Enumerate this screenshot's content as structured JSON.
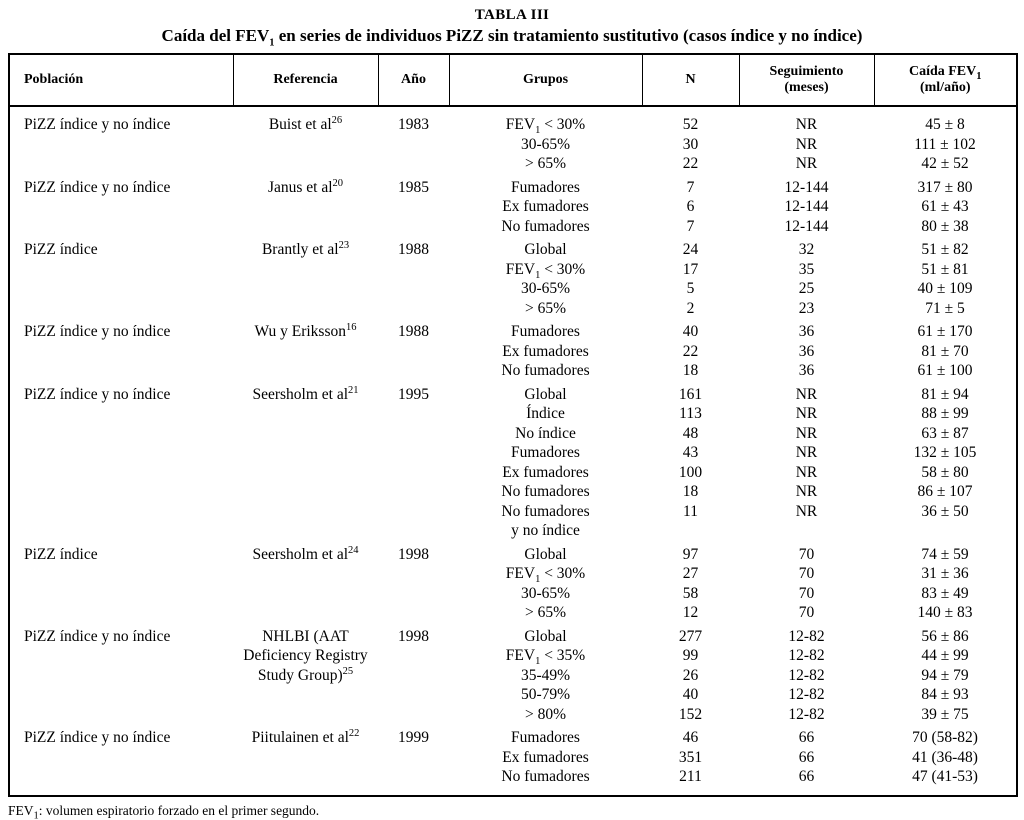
{
  "title": "TABLA III",
  "subtitle": "Caída del FEV_1 en series de individuos PiZZ sin tratamiento sustitutivo (casos índice y no índice)",
  "footnote": "FEV_1: volumen espiratorio forzado en el primer segundo.",
  "table": {
    "headers": [
      "Población",
      "Referencia",
      "Año",
      "Grupos",
      "N",
      "Seguimiento\n(meses)",
      "Caída FEV_1\n(ml/año)"
    ],
    "rows": [
      {
        "poblacion": [
          "PiZZ índice y no índice"
        ],
        "referencia": [
          "Buist et al^26"
        ],
        "ano": "1983",
        "grupos": [
          "FEV_1 < 30%",
          "30-65%",
          "> 65%"
        ],
        "n": [
          "52",
          "30",
          "22"
        ],
        "seguimiento": [
          "NR",
          "NR",
          "NR"
        ],
        "caida": [
          "45 ± 8",
          "111 ± 102",
          "42 ± 52"
        ]
      },
      {
        "poblacion": [
          "PiZZ índice y no índice"
        ],
        "referencia": [
          "Janus et al^20"
        ],
        "ano": "1985",
        "grupos": [
          "Fumadores",
          "Ex fumadores",
          "No fumadores"
        ],
        "n": [
          "7",
          "6",
          "7"
        ],
        "seguimiento": [
          "12-144",
          "12-144",
          "12-144"
        ],
        "caida": [
          "317 ± 80",
          "61 ± 43",
          "80 ± 38"
        ]
      },
      {
        "poblacion": [
          "PiZZ índice"
        ],
        "referencia": [
          "Brantly et al^23"
        ],
        "ano": "1988",
        "grupos": [
          "Global",
          "FEV_1 < 30%",
          "30-65%",
          "> 65%"
        ],
        "n": [
          "24",
          "17",
          "5",
          "2"
        ],
        "seguimiento": [
          "32",
          "35",
          "25",
          "23"
        ],
        "caida": [
          "51 ± 82",
          "51 ± 81",
          "40 ± 109",
          "71 ± 5"
        ]
      },
      {
        "poblacion": [
          "PiZZ índice y no índice"
        ],
        "referencia": [
          "Wu y Eriksson^16"
        ],
        "ano": "1988",
        "grupos": [
          "Fumadores",
          "Ex fumadores",
          "No fumadores"
        ],
        "n": [
          "40",
          "22",
          "18"
        ],
        "seguimiento": [
          "36",
          "36",
          "36"
        ],
        "caida": [
          "61 ± 170",
          "81 ± 70",
          "61 ± 100"
        ]
      },
      {
        "poblacion": [
          "PiZZ índice y no índice"
        ],
        "referencia": [
          "Seersholm et al^21"
        ],
        "ano": "1995",
        "grupos": [
          "Global",
          "Índice",
          "No índice",
          "Fumadores",
          "Ex fumadores",
          "No fumadores",
          "No fumadores",
          "y no índice"
        ],
        "n": [
          "161",
          "113",
          "48",
          "43",
          "100",
          "18",
          "11",
          ""
        ],
        "seguimiento": [
          "NR",
          "NR",
          "NR",
          "NR",
          "NR",
          "NR",
          "NR",
          ""
        ],
        "caida": [
          "81 ± 94",
          "88 ± 99",
          "63 ± 87",
          "132 ± 105",
          "58 ± 80",
          "86 ± 107",
          "36 ± 50",
          ""
        ]
      },
      {
        "poblacion": [
          "PiZZ índice"
        ],
        "referencia": [
          "Seersholm et al^24"
        ],
        "ano": "1998",
        "grupos": [
          "Global",
          "FEV_1 < 30%",
          "30-65%",
          "> 65%"
        ],
        "n": [
          "97",
          "27",
          "58",
          "12"
        ],
        "seguimiento": [
          "70",
          "70",
          "70",
          "70"
        ],
        "caida": [
          "74 ± 59",
          "31 ± 36",
          "83 ± 49",
          "140 ± 83"
        ]
      },
      {
        "poblacion": [
          "PiZZ índice y no índice"
        ],
        "referencia": [
          "NHLBI (AAT",
          "Deficiency Registry",
          "Study Group)^25"
        ],
        "ano": "1998",
        "grupos": [
          "Global",
          "FEV_1 < 35%",
          "35-49%",
          "50-79%",
          "> 80%"
        ],
        "n": [
          "277",
          "99",
          "26",
          "40",
          "152"
        ],
        "seguimiento": [
          "12-82",
          "12-82",
          "12-82",
          "12-82",
          "12-82"
        ],
        "caida": [
          "56 ± 86",
          "44 ± 99",
          "94 ± 79",
          "84 ± 93",
          "39 ± 75"
        ]
      },
      {
        "poblacion": [
          "PiZZ índice y no índice"
        ],
        "referencia": [
          "Piitulainen et al^22"
        ],
        "ano": "1999",
        "grupos": [
          "Fumadores",
          "Ex fumadores",
          "No fumadores"
        ],
        "n": [
          "46",
          "351",
          "211"
        ],
        "seguimiento": [
          "66",
          "66",
          "66"
        ],
        "caida": [
          "70 (58-82)",
          "41 (36-48)",
          "47 (41-53)"
        ]
      }
    ]
  }
}
